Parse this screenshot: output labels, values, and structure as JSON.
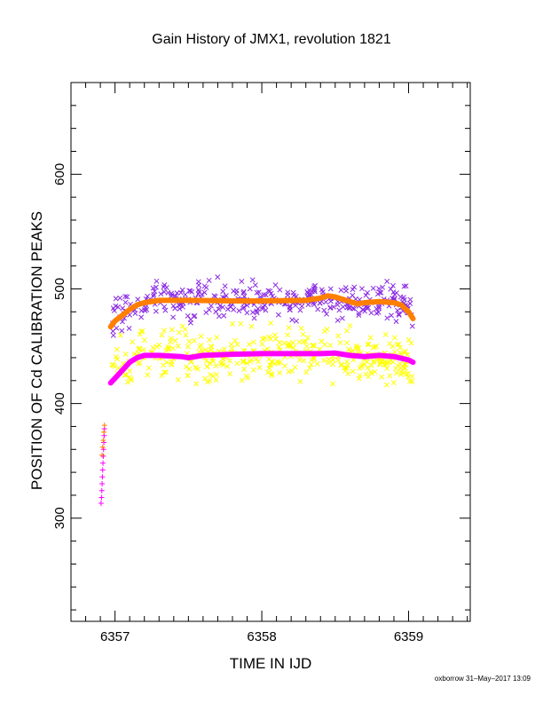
{
  "chart_data": {
    "type": "scatter",
    "title": "Gain History of JMX1, revolution 1821",
    "xlabel": "TIME IN IJD",
    "ylabel": "POSITION OF Cd CALIBRATION PEAKS",
    "xlim": [
      6356.7,
      6359.42
    ],
    "ylim": [
      210,
      680
    ],
    "x_ticks": [
      6357,
      6358,
      6359
    ],
    "y_ticks": [
      300,
      400,
      500,
      600
    ],
    "grid": false,
    "footer": "oxborrow 31–May–2017 13:09",
    "colors": {
      "upper_scatter": "#8a2be2",
      "upper_fit": "#ff7f00",
      "lower_scatter": "#ffff00",
      "lower_fit": "#ff00ff"
    },
    "series": [
      {
        "marker": "x",
        "color": "#8a2be2",
        "x_range": [
          6356.98,
          6359.03
        ],
        "center": [
          [
            6356.98,
            476
          ],
          [
            6357.1,
            484
          ],
          [
            6357.25,
            490
          ],
          [
            6357.5,
            489
          ],
          [
            6358.0,
            489
          ],
          [
            6358.3,
            490
          ],
          [
            6358.5,
            493
          ],
          [
            6358.7,
            490
          ],
          [
            6358.9,
            494
          ],
          [
            6359.0,
            482
          ],
          [
            6359.03,
            475
          ]
        ],
        "spread": 8,
        "count": 350
      },
      {
        "marker": "line",
        "color": "#ff7f00",
        "points": [
          [
            6356.97,
            467
          ],
          [
            6357.0,
            472
          ],
          [
            6357.05,
            477
          ],
          [
            6357.1,
            482
          ],
          [
            6357.15,
            486
          ],
          [
            6357.2,
            488
          ],
          [
            6357.3,
            490
          ],
          [
            6357.5,
            490
          ],
          [
            6357.8,
            489.5
          ],
          [
            6358.0,
            489.5
          ],
          [
            6358.3,
            490
          ],
          [
            6358.4,
            492
          ],
          [
            6358.45,
            494
          ],
          [
            6358.5,
            493
          ],
          [
            6358.55,
            491
          ],
          [
            6358.6,
            489
          ],
          [
            6358.65,
            487
          ],
          [
            6358.7,
            488
          ],
          [
            6358.8,
            489
          ],
          [
            6358.9,
            488
          ],
          [
            6358.95,
            486
          ],
          [
            6359.0,
            480
          ],
          [
            6359.03,
            474
          ]
        ]
      },
      {
        "marker": "x",
        "color": "#ffff00",
        "x_range": [
          6356.98,
          6359.03
        ],
        "center": [
          [
            6356.98,
            428
          ],
          [
            6357.1,
            437
          ],
          [
            6357.25,
            442
          ],
          [
            6357.5,
            440
          ],
          [
            6358.0,
            443
          ],
          [
            6358.5,
            443
          ],
          [
            6358.8,
            440
          ],
          [
            6359.03,
            434
          ]
        ],
        "spread": 11,
        "count": 380
      },
      {
        "marker": "line",
        "color": "#ff00ff",
        "points": [
          [
            6356.97,
            418
          ],
          [
            6357.0,
            422
          ],
          [
            6357.05,
            429
          ],
          [
            6357.1,
            436
          ],
          [
            6357.15,
            440
          ],
          [
            6357.2,
            442
          ],
          [
            6357.3,
            442
          ],
          [
            6357.45,
            441
          ],
          [
            6357.5,
            440
          ],
          [
            6357.6,
            442
          ],
          [
            6357.8,
            443
          ],
          [
            6358.0,
            443.5
          ],
          [
            6358.2,
            443.5
          ],
          [
            6358.4,
            443.5
          ],
          [
            6358.5,
            444
          ],
          [
            6358.6,
            442
          ],
          [
            6358.7,
            441
          ],
          [
            6358.8,
            442
          ],
          [
            6358.9,
            441
          ],
          [
            6359.0,
            438
          ],
          [
            6359.03,
            436
          ]
        ]
      },
      {
        "marker": "+",
        "color": "#ff00ff",
        "points": [
          [
            6356.905,
            313
          ],
          [
            6356.908,
            318
          ],
          [
            6356.91,
            324
          ],
          [
            6356.912,
            330
          ],
          [
            6356.914,
            336
          ],
          [
            6356.916,
            342
          ],
          [
            6356.918,
            348
          ],
          [
            6356.92,
            354
          ],
          [
            6356.922,
            360
          ],
          [
            6356.924,
            366
          ],
          [
            6356.926,
            372
          ],
          [
            6356.928,
            378
          ]
        ]
      },
      {
        "marker": "+",
        "color": "#ff7f00",
        "points": [
          [
            6356.912,
            355
          ],
          [
            6356.916,
            362
          ],
          [
            6356.92,
            368
          ],
          [
            6356.924,
            375
          ],
          [
            6356.928,
            381
          ]
        ]
      }
    ]
  }
}
